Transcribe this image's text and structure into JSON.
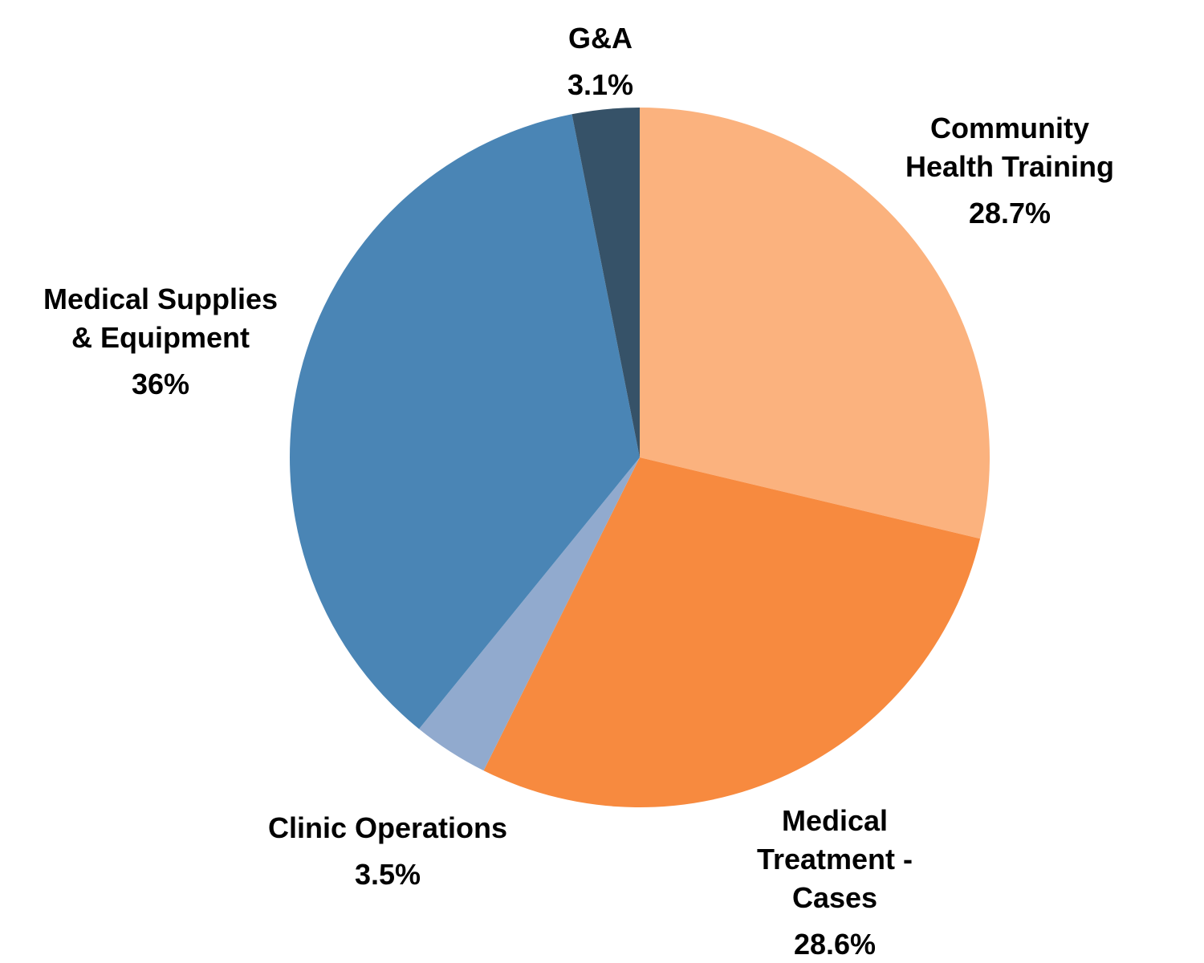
{
  "chart_data": {
    "type": "pie",
    "start": "top",
    "direction": "clockwise",
    "slices": [
      {
        "label_lines": [
          "Community",
          "Health Training"
        ],
        "value": 28.7,
        "value_label": "28.7%",
        "color": "#FBB27E"
      },
      {
        "label_lines": [
          "Medical",
          "Treatment -",
          "Cases"
        ],
        "value": 28.6,
        "value_label": "28.6%",
        "color": "#F78A3F"
      },
      {
        "label_lines": [
          "Clinic Operations"
        ],
        "value": 3.5,
        "value_label": "3.5%",
        "color": "#91AACE"
      },
      {
        "label_lines": [
          "Medical Supplies",
          "& Equipment"
        ],
        "value": 36,
        "value_label": "36%",
        "color": "#4A85B5"
      },
      {
        "label_lines": [
          "G&A"
        ],
        "value": 3.1,
        "value_label": "3.1%",
        "color": "#365268"
      }
    ]
  }
}
